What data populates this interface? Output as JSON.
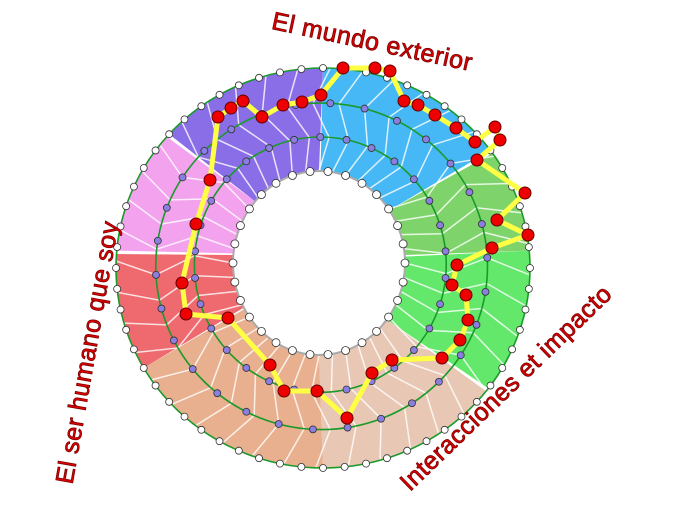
{
  "labels": {
    "top": "El mundo exterior",
    "bottom_right": "Interacciones et impacto",
    "left": "El ser humano que soy"
  },
  "colors": {
    "sector_blue": "#45b8f5",
    "sector_green_top": "#7ed46a",
    "sector_green": "#63e86b",
    "sector_beige": "#e8c8b4",
    "sector_tan": "#e8b08e",
    "sector_red": "#ee6a6f",
    "sector_pink": "#f3a2ee",
    "sector_purple": "#8a6ee8",
    "ring_line": "#1a9a2a",
    "path_line": "#ffff44",
    "path_node": "#ee0000",
    "inner_node": "#8a7ee0",
    "label_text": "#e00000"
  }
}
